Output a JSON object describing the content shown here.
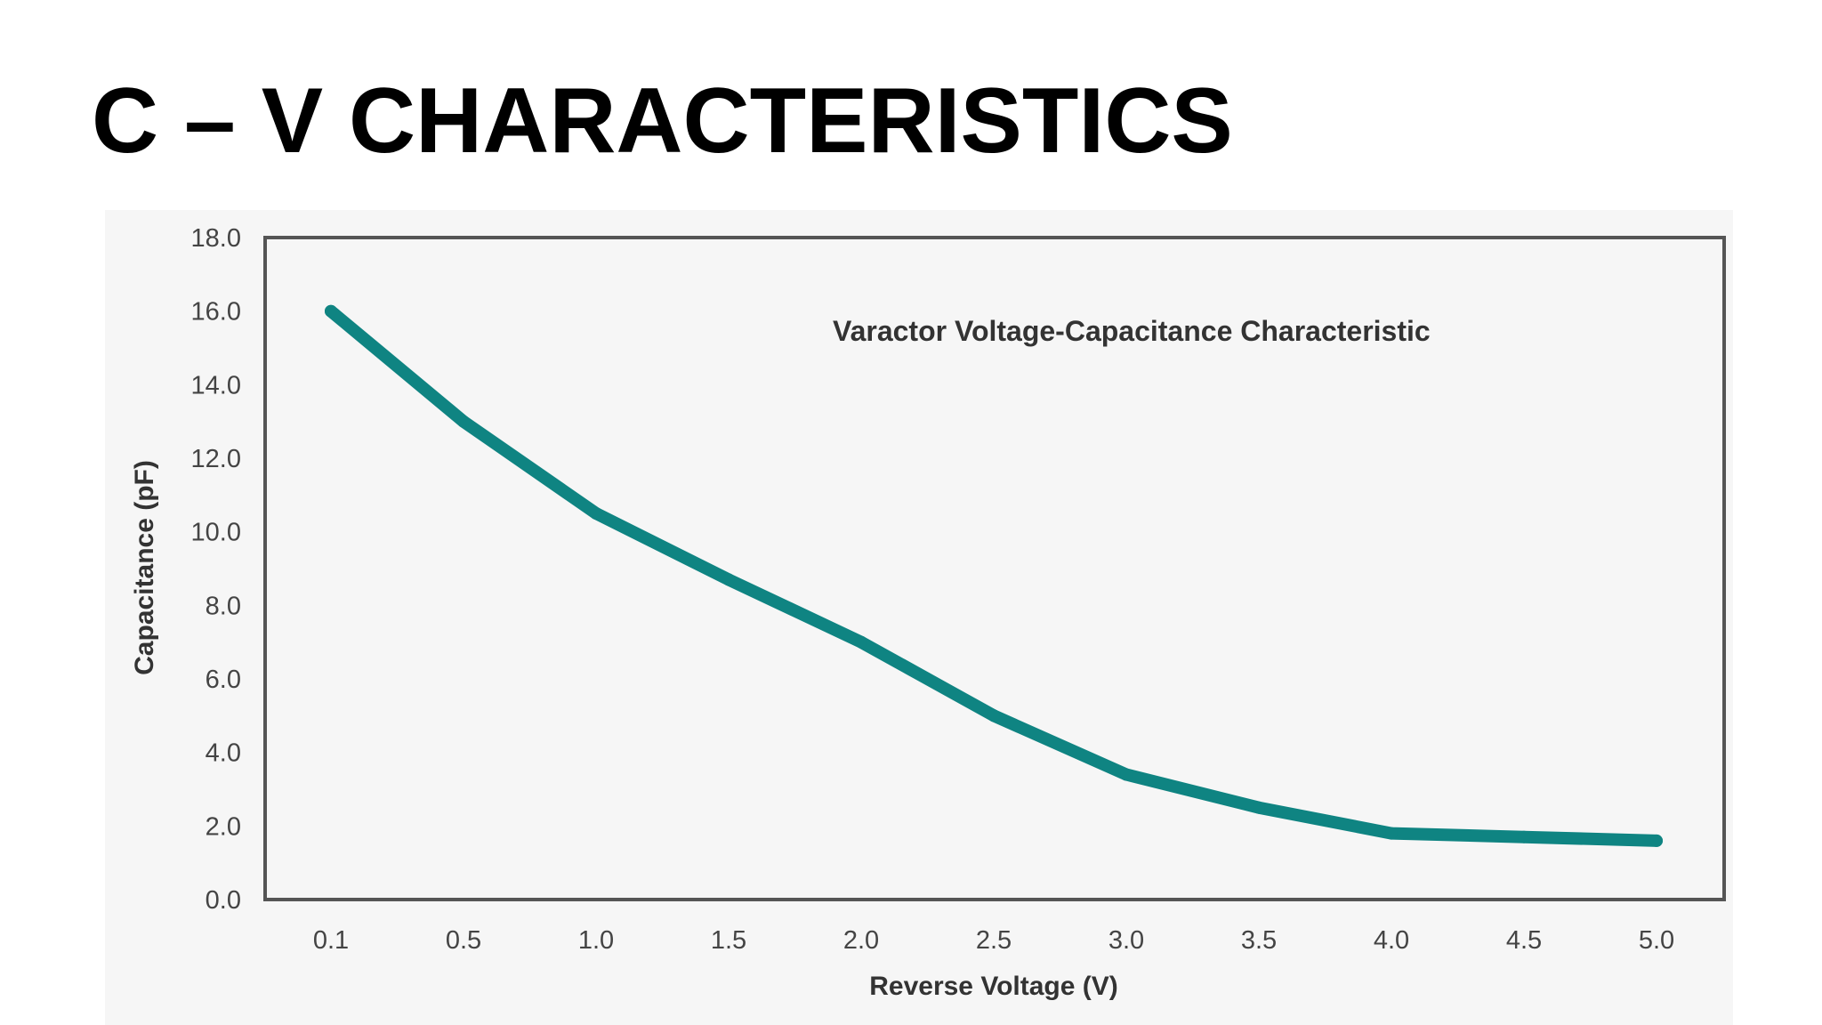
{
  "slide": {
    "title": "C – V CHARACTERISTICS"
  },
  "chart_data": {
    "type": "line",
    "title": "Varactor Voltage-Capacitance Characteristic",
    "xlabel": "Reverse Voltage (V)",
    "ylabel": "Capacitance (pF)",
    "categories": [
      "0.1",
      "0.5",
      "1.0",
      "1.5",
      "2.0",
      "2.5",
      "3.0",
      "3.5",
      "4.0",
      "4.5",
      "5.0"
    ],
    "y_ticks": [
      "0.0",
      "2.0",
      "4.0",
      "6.0",
      "8.0",
      "10.0",
      "12.0",
      "14.0",
      "16.0",
      "18.0"
    ],
    "ylim": [
      0,
      18
    ],
    "grid": false,
    "series": [
      {
        "values": [
          16.0,
          13.0,
          10.5,
          8.7,
          7.0,
          5.0,
          3.4,
          2.5,
          1.8,
          1.7,
          1.6
        ],
        "color": "#0f8482"
      }
    ],
    "colors": {
      "line": "#0f8482",
      "frame": "#555555",
      "panel_background": "#f6f6f6"
    }
  }
}
